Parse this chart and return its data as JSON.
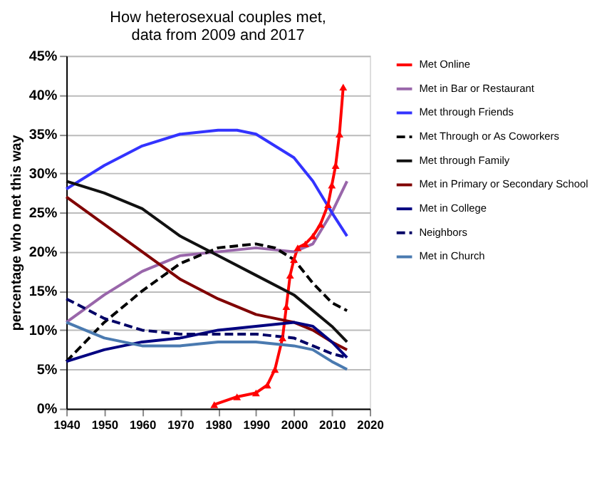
{
  "chart_data": {
    "type": "line",
    "title": "How heterosexual couples met,\ndata from 2009 and 2017",
    "ylabel": "percentage who met this way",
    "xlim": [
      1940,
      2020
    ],
    "xticks": [
      1940,
      1950,
      1960,
      1970,
      1980,
      1990,
      2000,
      2010,
      2020
    ],
    "ylim": [
      0,
      45
    ],
    "yticks": [
      {
        "value": 0,
        "label": "0%"
      },
      {
        "value": 5,
        "label": "5%"
      },
      {
        "value": 10,
        "label": "10%"
      },
      {
        "value": 15,
        "label": "15%"
      },
      {
        "value": 20,
        "label": "20%"
      },
      {
        "value": 25,
        "label": "25%"
      },
      {
        "value": 30,
        "label": "30%"
      },
      {
        "value": 35,
        "label": "35%"
      },
      {
        "value": 40,
        "label": "40%"
      },
      {
        "value": 45,
        "label": "45%"
      }
    ],
    "grid": "y",
    "legend": "right",
    "series": [
      {
        "name": "Met Online",
        "color": "#ff0000",
        "marker": "triangle",
        "line_style": "solid",
        "x": [
          1979,
          1985,
          1990,
          1993,
          1995,
          1997,
          1998,
          1999,
          2000,
          2001,
          2003,
          2005,
          2007,
          2009,
          2010,
          2011,
          2012,
          2013
        ],
        "values": [
          0.5,
          1.5,
          2,
          3,
          5,
          9,
          13,
          17,
          19,
          20.5,
          21,
          22,
          23.5,
          26,
          28.5,
          31,
          35,
          41
        ]
      },
      {
        "name": "Met in Bar or Restaurant",
        "color": "#9966aa",
        "marker": "none",
        "line_style": "solid",
        "x": [
          1940,
          1950,
          1960,
          1970,
          1980,
          1990,
          2000,
          2005,
          2010,
          2014
        ],
        "values": [
          11,
          14.5,
          17.5,
          19.5,
          20,
          20.5,
          20,
          21,
          25,
          29
        ]
      },
      {
        "name": "Met through Friends",
        "color": "#3333ff",
        "marker": "none",
        "line_style": "solid",
        "x": [
          1940,
          1950,
          1960,
          1970,
          1980,
          1985,
          1990,
          2000,
          2005,
          2010,
          2014
        ],
        "values": [
          28,
          31,
          33.5,
          35,
          35.5,
          35.5,
          35,
          32,
          29,
          25,
          22
        ]
      },
      {
        "name": "Met Through or As Coworkers",
        "color": "#000000",
        "marker": "none",
        "line_style": "dashed",
        "x": [
          1940,
          1950,
          1960,
          1970,
          1980,
          1990,
          1995,
          2000,
          2005,
          2010,
          2014
        ],
        "values": [
          6,
          11,
          15,
          18.5,
          20.5,
          21,
          20.5,
          19,
          16,
          13.5,
          12.5
        ]
      },
      {
        "name": "Met through Family",
        "color": "#111111",
        "marker": "none",
        "line_style": "solid",
        "x": [
          1940,
          1950,
          1960,
          1970,
          1980,
          1990,
          2000,
          2005,
          2010,
          2014
        ],
        "values": [
          29,
          27.5,
          25.5,
          22,
          19.5,
          17,
          14.5,
          12.5,
          10.5,
          8.5
        ]
      },
      {
        "name": "Met in Primary or Secondary School",
        "color": "#800000",
        "marker": "none",
        "line_style": "solid",
        "x": [
          1940,
          1950,
          1960,
          1970,
          1980,
          1990,
          2000,
          2005,
          2010,
          2014
        ],
        "values": [
          27,
          23.5,
          20,
          16.5,
          14,
          12,
          11,
          10,
          8.5,
          7.5
        ]
      },
      {
        "name": "Met in College",
        "color": "#000080",
        "marker": "none",
        "line_style": "solid",
        "x": [
          1940,
          1950,
          1960,
          1970,
          1980,
          1990,
          2000,
          2005,
          2010,
          2014
        ],
        "values": [
          6,
          7.5,
          8.5,
          9,
          10,
          10.5,
          11,
          10.5,
          8.5,
          6.5
        ]
      },
      {
        "name": "Neighbors",
        "color": "#000066",
        "marker": "none",
        "line_style": "dashed",
        "x": [
          1940,
          1950,
          1960,
          1970,
          1980,
          1990,
          2000,
          2005,
          2010,
          2014
        ],
        "values": [
          14,
          11.5,
          10,
          9.5,
          9.5,
          9.5,
          9,
          8,
          7,
          6.5
        ]
      },
      {
        "name": "Met in Church",
        "color": "#4a7ab0",
        "marker": "none",
        "line_style": "solid",
        "x": [
          1940,
          1950,
          1960,
          1970,
          1980,
          1990,
          2000,
          2005,
          2010,
          2014
        ],
        "values": [
          11,
          9,
          8,
          8,
          8.5,
          8.5,
          8,
          7.5,
          6,
          5
        ]
      }
    ]
  }
}
